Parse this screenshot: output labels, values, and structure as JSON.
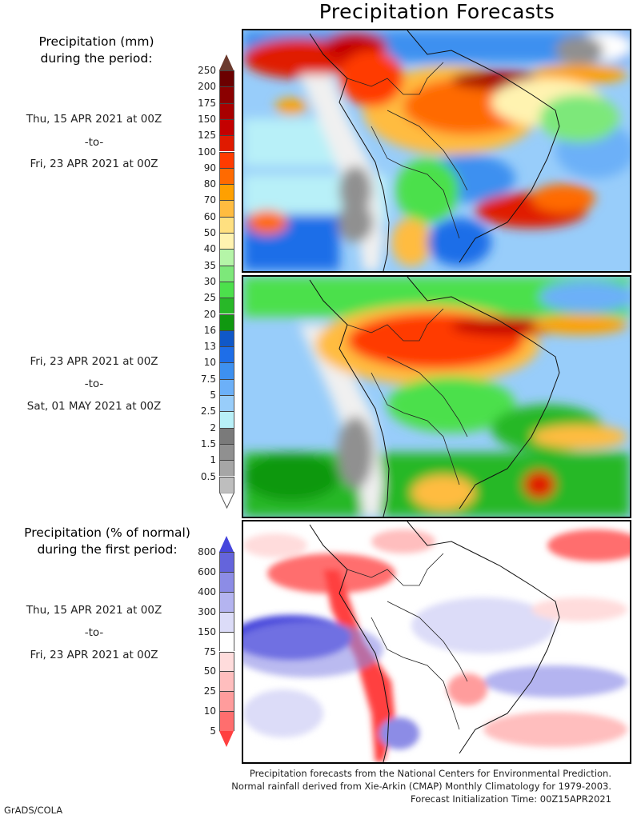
{
  "title": "Precipitation Forecasts",
  "amount_legend": {
    "heading_line1": "Precipitation (mm)",
    "heading_line2": "during the period:",
    "ticks": [
      "250",
      "200",
      "175",
      "150",
      "125",
      "100",
      "90",
      "80",
      "70",
      "60",
      "50",
      "40",
      "35",
      "30",
      "25",
      "20",
      "16",
      "13",
      "10",
      "7.5",
      "5",
      "2.5",
      "2",
      "1.5",
      "1",
      "0.5"
    ],
    "colors": [
      "#6b0000",
      "#8b0000",
      "#a80000",
      "#c40000",
      "#e01a00",
      "#ff3b00",
      "#ff6a00",
      "#ffa000",
      "#ffbc40",
      "#ffe080",
      "#fff3b0",
      "#b5f5a8",
      "#7de87a",
      "#4ce04c",
      "#28b828",
      "#109810",
      "#1058c8",
      "#1e6ee8",
      "#3d90f0",
      "#6cb0f8",
      "#98cdfa",
      "#b8f0f8",
      "#7a7a7a",
      "#909090",
      "#a6a6a6",
      "#bebebe"
    ],
    "over_color": "#6b3a2e",
    "under_color": "#ffffff"
  },
  "period1": {
    "start": "Thu, 15 APR 2021 at 00Z",
    "sep": "-to-",
    "end": "Fri, 23 APR 2021 at 00Z"
  },
  "period2": {
    "start": "Fri, 23 APR 2021 at 00Z",
    "sep": "-to-",
    "end": "Sat, 01 MAY 2021 at 00Z"
  },
  "percent_legend": {
    "heading_line1": "Precipitation (% of normal)",
    "heading_line2": "during the first period:",
    "ticks": [
      "800",
      "600",
      "400",
      "300",
      "150",
      "75",
      "50",
      "25",
      "10",
      "5"
    ],
    "colors": [
      "#6464dc",
      "#8c8ce6",
      "#b4b4f0",
      "#dcdcf8",
      "#ffffff",
      "#ffdcdc",
      "#ffbebe",
      "#ff9c9c",
      "#ff6e6e"
    ],
    "over_color": "#4646dc",
    "under_color": "#ff4040"
  },
  "period3": {
    "start": "Thu, 15 APR 2021 at 00Z",
    "sep": "-to-",
    "end": "Fri, 23 APR 2021 at 00Z"
  },
  "maps": [
    {
      "name": "precip-map-period-1",
      "region": "South America"
    },
    {
      "name": "precip-map-period-2",
      "region": "South America"
    },
    {
      "name": "percent-normal-map",
      "region": "South America"
    }
  ],
  "footer": {
    "line1": "Precipitation forecasts from the National Centers for Environmental Prediction.",
    "line2": "Normal rainfall derived from Xie-Arkin (CMAP) Monthly Climatology for 1979-2003.",
    "line3": "Forecast Initialization Time: 00Z15APR2021"
  },
  "credit": "GrADS/COLA"
}
